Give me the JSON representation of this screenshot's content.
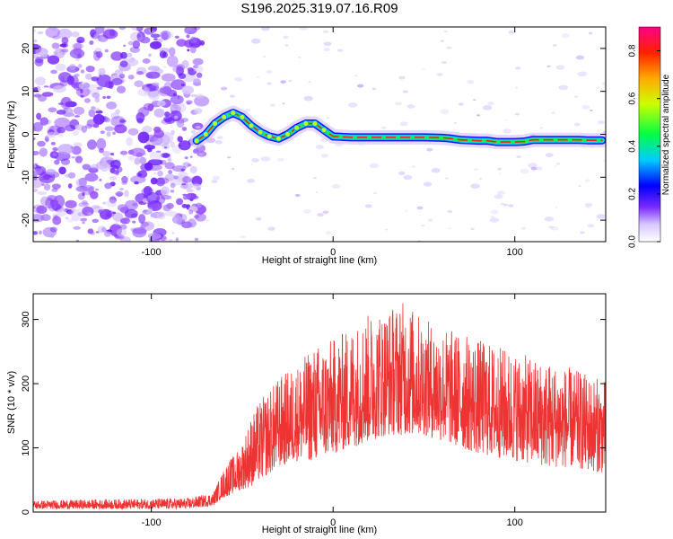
{
  "figure": {
    "title": "S196.2025.319.07.16.R09"
  },
  "chart_data": [
    {
      "type": "heatmap",
      "name": "spectrogram",
      "xlabel": "Height of straight line (km)",
      "ylabel": "Frequency (Hz)",
      "xlim": [
        -165,
        150
      ],
      "ylim": [
        -25,
        25
      ],
      "xticks": [
        -100,
        0,
        100
      ],
      "yticks": [
        -20,
        -10,
        0,
        10,
        20
      ],
      "noise_region_x": [
        -165,
        -75
      ],
      "ridge": {
        "x": [
          -75,
          -70,
          -65,
          -60,
          -55,
          -50,
          -45,
          -40,
          -35,
          -30,
          -25,
          -20,
          -15,
          -10,
          -5,
          0,
          10,
          20,
          30,
          40,
          50,
          60,
          65,
          70,
          75,
          80,
          85,
          90,
          95,
          100,
          105,
          110,
          115,
          120,
          125,
          130,
          135,
          140,
          148
        ],
        "y": [
          -1.5,
          0.0,
          2.5,
          4.0,
          5.0,
          4.0,
          2.0,
          0.5,
          -0.5,
          -1.0,
          0.0,
          1.5,
          2.5,
          2.5,
          1.0,
          -0.5,
          -0.7,
          -0.7,
          -0.7,
          -0.7,
          -0.7,
          -0.8,
          -1.0,
          -1.3,
          -1.4,
          -1.5,
          -1.5,
          -1.8,
          -1.8,
          -1.8,
          -1.7,
          -1.3,
          -1.3,
          -1.3,
          -1.3,
          -1.3,
          -1.3,
          -1.4,
          -1.4
        ]
      },
      "colorbar": {
        "label": "Normalized spectral amplitude",
        "range": [
          0.0,
          0.9
        ],
        "ticks": [
          "0.0",
          "0.2",
          "0.4",
          "0.6",
          "0.8"
        ]
      }
    },
    {
      "type": "line",
      "name": "snr",
      "xlabel": "Height of straight line (km)",
      "ylabel": "SNR (10 * v/v)",
      "xlim": [
        -165,
        150
      ],
      "ylim": [
        0,
        340
      ],
      "xticks": [
        -100,
        0,
        100
      ],
      "yticks": [
        0,
        100,
        200,
        300
      ],
      "color": "#ee3333",
      "envelope": {
        "x": [
          -165,
          -120,
          -80,
          -66,
          -62,
          -58,
          -54,
          -50,
          -45,
          -40,
          -35,
          -30,
          -20,
          -10,
          0,
          10,
          20,
          30,
          40,
          50,
          60,
          70,
          80,
          90,
          100,
          110,
          120,
          130,
          140,
          150
        ],
        "low": [
          5,
          5,
          5,
          10,
          20,
          25,
          30,
          35,
          40,
          50,
          60,
          70,
          80,
          80,
          90,
          100,
          110,
          120,
          120,
          120,
          110,
          100,
          90,
          85,
          80,
          75,
          70,
          70,
          65,
          60
        ],
        "high": [
          18,
          20,
          22,
          30,
          55,
          80,
          90,
          110,
          150,
          175,
          190,
          210,
          230,
          260,
          270,
          290,
          310,
          320,
          330,
          300,
          290,
          280,
          270,
          260,
          250,
          240,
          235,
          225,
          215,
          205
        ]
      }
    }
  ]
}
